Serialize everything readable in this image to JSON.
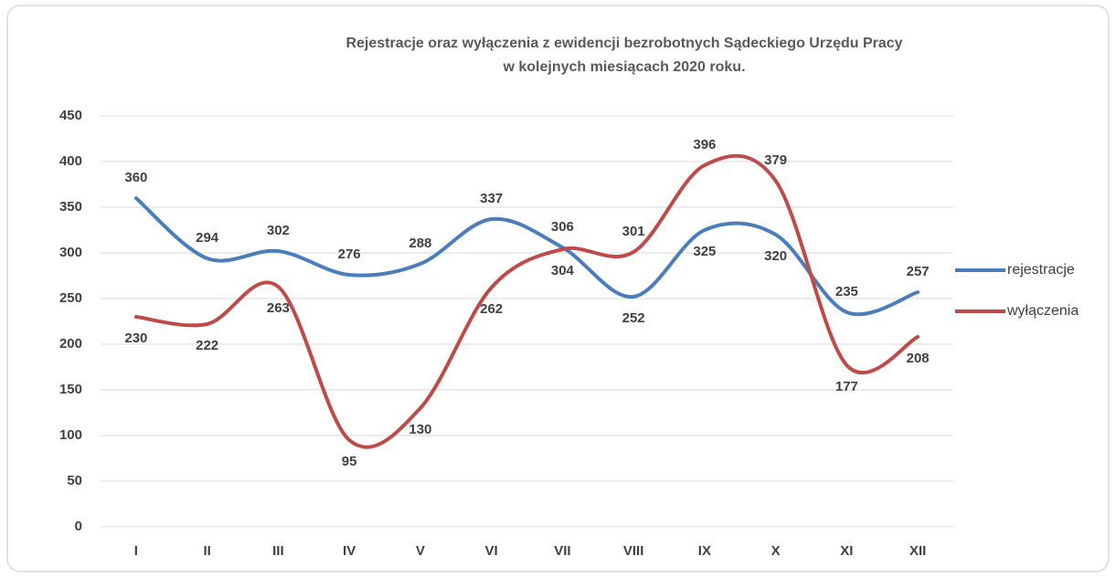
{
  "chart_data": {
    "type": "line",
    "title": [
      "Rejestracje oraz wyłączenia z ewidencji bezrobotnych Sądeckiego Urzędu Pracy",
      "w kolejnych miesiącach 2020 roku."
    ],
    "categories": [
      "I",
      "II",
      "III",
      "IV",
      "V",
      "VI",
      "VII",
      "VIII",
      "IX",
      "X",
      "XI",
      "XII"
    ],
    "series": [
      {
        "name": "rejestracje",
        "color": "#4a7ebb",
        "values": [
          360,
          294,
          302,
          276,
          288,
          337,
          306,
          252,
          325,
          320,
          235,
          257
        ]
      },
      {
        "name": "wyłączenia",
        "color": "#be4b48",
        "values": [
          230,
          222,
          263,
          95,
          130,
          262,
          304,
          301,
          396,
          379,
          177,
          208
        ]
      }
    ],
    "ylim": [
      0,
      450
    ],
    "yticks": [
      0,
      50,
      100,
      150,
      200,
      250,
      300,
      350,
      400,
      450
    ],
    "grid": true,
    "legend": "right",
    "smooth": true
  }
}
